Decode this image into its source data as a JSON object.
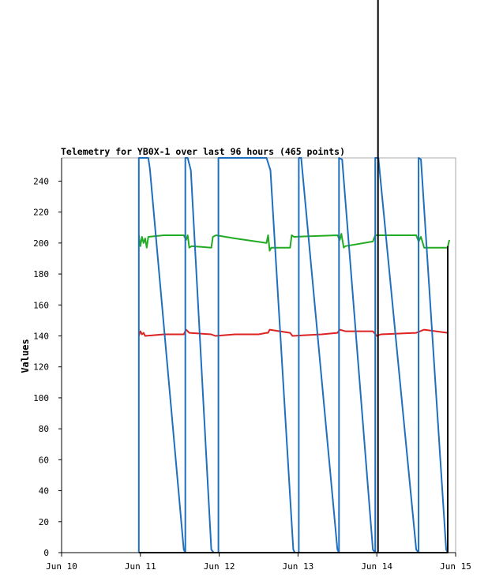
{
  "chart_data": {
    "type": "line",
    "title": "Telemetry for YB0X-1 over last 96 hours (465 points)",
    "xlabel": "",
    "ylabel": "Values",
    "x_unit": "day",
    "x_range": [
      0,
      5
    ],
    "x_ticks": [
      "Jun 10",
      "Jun 11",
      "Jun 12",
      "Jun 13",
      "Jun 14",
      "Jun 15"
    ],
    "ylim": [
      0,
      255
    ],
    "y_ticks": [
      0,
      20,
      40,
      60,
      80,
      100,
      120,
      140,
      160,
      180,
      200,
      220,
      240
    ],
    "grid": false,
    "marker_line": {
      "x": 4.015,
      "color": "#000000"
    },
    "series": [
      {
        "color": "#22aa22",
        "points": [
          [
            0.98,
            205
          ],
          [
            1.0,
            198
          ],
          [
            1.02,
            204
          ],
          [
            1.04,
            200
          ],
          [
            1.06,
            203
          ],
          [
            1.08,
            197
          ],
          [
            1.1,
            204
          ],
          [
            1.3,
            205
          ],
          [
            1.55,
            205
          ],
          [
            1.58,
            202
          ],
          [
            1.6,
            205
          ],
          [
            1.62,
            197
          ],
          [
            1.65,
            198
          ],
          [
            1.9,
            197
          ],
          [
            1.92,
            204
          ],
          [
            1.96,
            205
          ],
          [
            2.2,
            203
          ],
          [
            2.6,
            200
          ],
          [
            2.62,
            205
          ],
          [
            2.64,
            195
          ],
          [
            2.66,
            197
          ],
          [
            2.9,
            197
          ],
          [
            2.92,
            205
          ],
          [
            2.95,
            204
          ],
          [
            3.5,
            205
          ],
          [
            3.53,
            202
          ],
          [
            3.55,
            206
          ],
          [
            3.58,
            197
          ],
          [
            3.6,
            198
          ],
          [
            3.95,
            201
          ],
          [
            3.98,
            205
          ],
          [
            4.5,
            205
          ],
          [
            4.53,
            201
          ],
          [
            4.56,
            204
          ],
          [
            4.6,
            197
          ],
          [
            4.9,
            197
          ],
          [
            4.92,
            202
          ]
        ]
      },
      {
        "color": "#dd2222",
        "points": [
          [
            0.98,
            140
          ],
          [
            1.0,
            143
          ],
          [
            1.02,
            141
          ],
          [
            1.04,
            142
          ],
          [
            1.06,
            140
          ],
          [
            1.3,
            141
          ],
          [
            1.55,
            141
          ],
          [
            1.58,
            144
          ],
          [
            1.6,
            143
          ],
          [
            1.62,
            142
          ],
          [
            1.9,
            141
          ],
          [
            1.95,
            140
          ],
          [
            2.2,
            141
          ],
          [
            2.5,
            141
          ],
          [
            2.6,
            142
          ],
          [
            2.62,
            142
          ],
          [
            2.64,
            144
          ],
          [
            2.9,
            142
          ],
          [
            2.93,
            140
          ],
          [
            3.3,
            141
          ],
          [
            3.5,
            142
          ],
          [
            3.53,
            144
          ],
          [
            3.6,
            143
          ],
          [
            3.95,
            143
          ],
          [
            4.0,
            140
          ],
          [
            4.05,
            141
          ],
          [
            4.5,
            142
          ],
          [
            4.55,
            143
          ],
          [
            4.6,
            144
          ],
          [
            4.9,
            142
          ]
        ]
      },
      {
        "color": "#1f6fbf",
        "points": [
          [
            0.98,
            0
          ],
          [
            0.98,
            255
          ],
          [
            1.1,
            255
          ],
          [
            1.12,
            248
          ],
          [
            1.55,
            2
          ],
          [
            1.57,
            0
          ],
          [
            1.57,
            255
          ],
          [
            1.6,
            255
          ],
          [
            1.64,
            247
          ],
          [
            1.9,
            2
          ],
          [
            1.93,
            0
          ],
          [
            1.99,
            0
          ],
          [
            1.99,
            255
          ],
          [
            2.6,
            255
          ],
          [
            2.65,
            247
          ],
          [
            2.94,
            2
          ],
          [
            2.96,
            0
          ],
          [
            3.01,
            0
          ],
          [
            3.01,
            255
          ],
          [
            3.04,
            255
          ],
          [
            3.5,
            2
          ],
          [
            3.52,
            0
          ],
          [
            3.52,
            255
          ],
          [
            3.56,
            254
          ],
          [
            3.95,
            2
          ],
          [
            3.98,
            0
          ],
          [
            3.98,
            255
          ],
          [
            4.02,
            255
          ],
          [
            4.5,
            2
          ],
          [
            4.53,
            0
          ],
          [
            4.53,
            255
          ],
          [
            4.56,
            254
          ],
          [
            4.88,
            2
          ],
          [
            4.9,
            0
          ]
        ]
      },
      {
        "color": "#000000",
        "points": [
          [
            0.98,
            0
          ],
          [
            4.9,
            0
          ],
          [
            4.9,
            198
          ]
        ]
      }
    ]
  }
}
